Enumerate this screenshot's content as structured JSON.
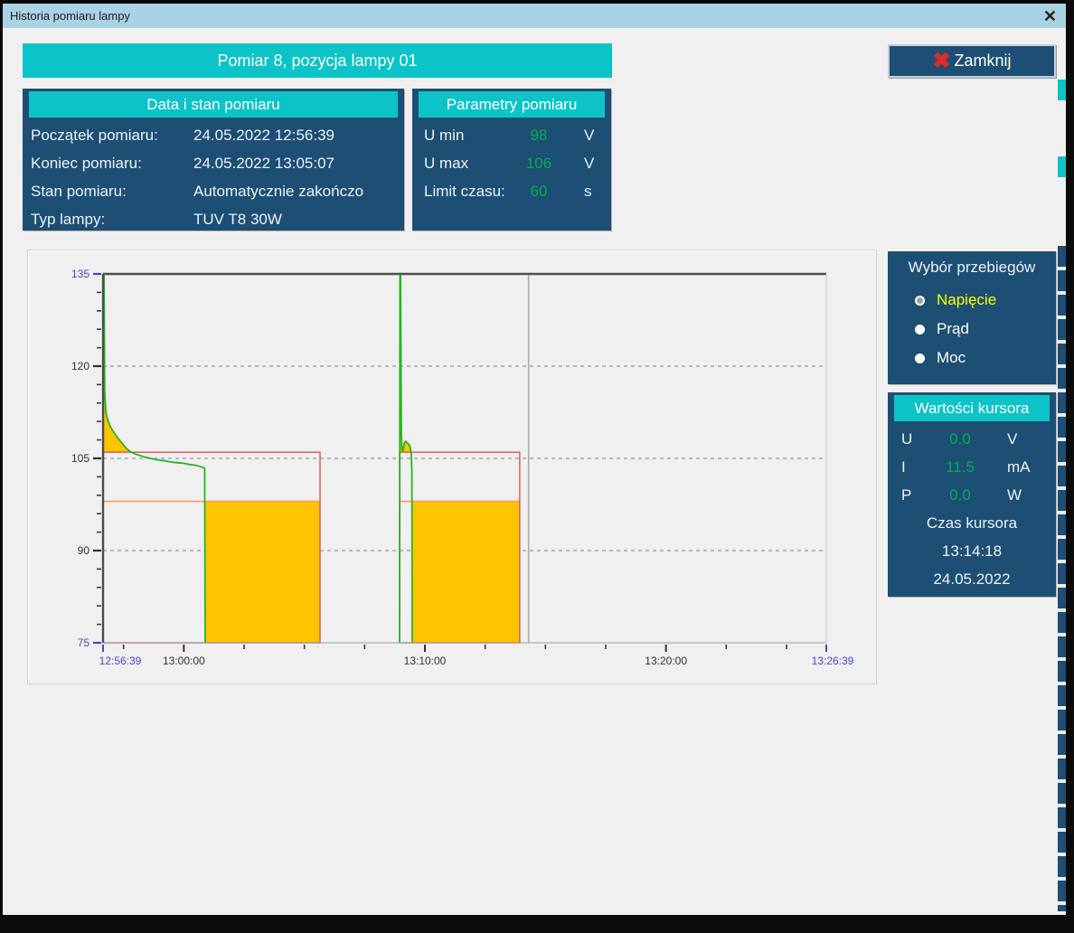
{
  "window": {
    "title": "Historia pomiaru lampy"
  },
  "icons": {
    "window_close_glyph": "✕",
    "button_x_glyph": "✖"
  },
  "header": {
    "banner": "Pomiar 8, pozycja lampy 01",
    "close_button_label": "Zamknij"
  },
  "info_panel": {
    "title": "Data i stan pomiaru",
    "rows": [
      {
        "label": "Początek pomiaru:",
        "value": "24.05.2022 12:56:39"
      },
      {
        "label": "Koniec pomiaru:",
        "value": "24.05.2022 13:05:07"
      },
      {
        "label": "Stan pomiaru:",
        "value": "Automatycznie zakończo"
      },
      {
        "label": "Typ lampy:",
        "value": "TUV T8 30W"
      }
    ]
  },
  "params_panel": {
    "title": "Parametry pomiaru",
    "rows": [
      {
        "label": "U min",
        "value": "98",
        "unit": "V"
      },
      {
        "label": "U max",
        "value": "106",
        "unit": "V"
      },
      {
        "label": "Limit czasu:",
        "value": "60",
        "unit": "s"
      }
    ]
  },
  "waveform_panel": {
    "title": "Wybór przebiegów",
    "options": [
      {
        "label": "Napięcie",
        "selected": true
      },
      {
        "label": "Prąd",
        "selected": false
      },
      {
        "label": "Moc",
        "selected": false
      }
    ]
  },
  "cursor_panel": {
    "title": "Wartości kursora",
    "rows": [
      {
        "label": "U",
        "value": "0.0",
        "unit": "V"
      },
      {
        "label": "I",
        "value": "11.5",
        "unit": "mA"
      },
      {
        "label": "P",
        "value": "0.0",
        "unit": "W"
      }
    ],
    "time_label": "Czas kursora",
    "time": "13:14:18",
    "date": "24.05.2022"
  },
  "colors": {
    "titlebar_bg": "#a9d3e4",
    "window_bg": "#f0f0f0",
    "panel_navy": "#1d4e74",
    "accent_cyan": "#0cc4c8",
    "button_navy": "#1d4e74",
    "close_x_red": "#e02b2b",
    "value_green": "#00b050",
    "selected_yellow": "#ffff00",
    "chart_green": "#25b425",
    "chart_yellow": "#ffc400",
    "chart_red": "#e05252",
    "chart_orange": "#ff9a5a",
    "cursor_gray": "#ababab",
    "axis_endpoint_blue": "#4545cf"
  },
  "chart_data": {
    "type": "line",
    "title": "",
    "xlabel": "",
    "ylabel": "",
    "legend": "none",
    "grid": "horizontal-dashed",
    "x_axis": {
      "unit": "time",
      "range_s": [
        0,
        1800
      ],
      "major_ticks": [
        {
          "t": 0,
          "label": "12:56:39",
          "endpoint": true
        },
        {
          "t": 201,
          "label": "13:00:00",
          "endpoint": false
        },
        {
          "t": 801,
          "label": "13:10:00",
          "endpoint": false
        },
        {
          "t": 1401,
          "label": "13:20:00",
          "endpoint": false
        },
        {
          "t": 1800,
          "label": "13:26:39",
          "endpoint": true
        }
      ],
      "minor_ticks_s": [
        51,
        351,
        501,
        651,
        951,
        1101,
        1251,
        1551,
        1701
      ]
    },
    "y_axis": {
      "unit": "V",
      "range": [
        75,
        135
      ],
      "major_ticks": [
        {
          "v": 75,
          "endpoint": true
        },
        {
          "v": 90,
          "endpoint": false
        },
        {
          "v": 105,
          "endpoint": false
        },
        {
          "v": 120,
          "endpoint": false
        },
        {
          "v": 135,
          "endpoint": true
        }
      ],
      "minor_step": 3,
      "gridlines": [
        90,
        105,
        120
      ]
    },
    "u_max_limit": 106,
    "u_min_limit": 98,
    "limit_boxes": [
      {
        "t0": 0,
        "t1": 540
      },
      {
        "t0": 738,
        "t1": 1037
      }
    ],
    "off_blocks": [
      {
        "t0": 254,
        "t1": 540
      },
      {
        "t0": 770,
        "t1": 1037
      }
    ],
    "voltage_series": [
      [
        [
          0,
          75
        ],
        [
          1,
          135
        ],
        [
          2.5,
          135
        ],
        [
          4,
          116
        ],
        [
          7,
          112.5
        ],
        [
          12,
          111.2
        ],
        [
          18,
          110.2
        ],
        [
          26,
          109.3
        ],
        [
          36,
          108.4
        ],
        [
          48,
          107.4
        ],
        [
          58,
          106.6
        ],
        [
          68,
          106.1
        ],
        [
          80,
          105.7
        ],
        [
          95,
          105.4
        ],
        [
          110,
          105.1
        ],
        [
          125,
          104.9
        ],
        [
          140,
          104.7
        ],
        [
          155,
          104.6
        ],
        [
          170,
          104.4
        ],
        [
          185,
          104.3
        ],
        [
          200,
          104.2
        ],
        [
          215,
          104.0
        ],
        [
          228,
          103.9
        ],
        [
          240,
          103.7
        ],
        [
          250,
          103.5
        ],
        [
          253,
          103.4
        ],
        [
          254,
          75
        ]
      ],
      [
        [
          738,
          75
        ],
        [
          739,
          135
        ],
        [
          740.5,
          135
        ],
        [
          741.5,
          118
        ],
        [
          742.5,
          109
        ],
        [
          744,
          106.4
        ],
        [
          746,
          106.2
        ],
        [
          748,
          106.8
        ],
        [
          750,
          107.5
        ],
        [
          753,
          107.8
        ],
        [
          756,
          107.6
        ],
        [
          759,
          107.4
        ],
        [
          762,
          107.2
        ],
        [
          765,
          106.6
        ],
        [
          767,
          105.8
        ],
        [
          768.5,
          103
        ],
        [
          769.5,
          75
        ]
      ]
    ],
    "cursor_t": 1059
  }
}
